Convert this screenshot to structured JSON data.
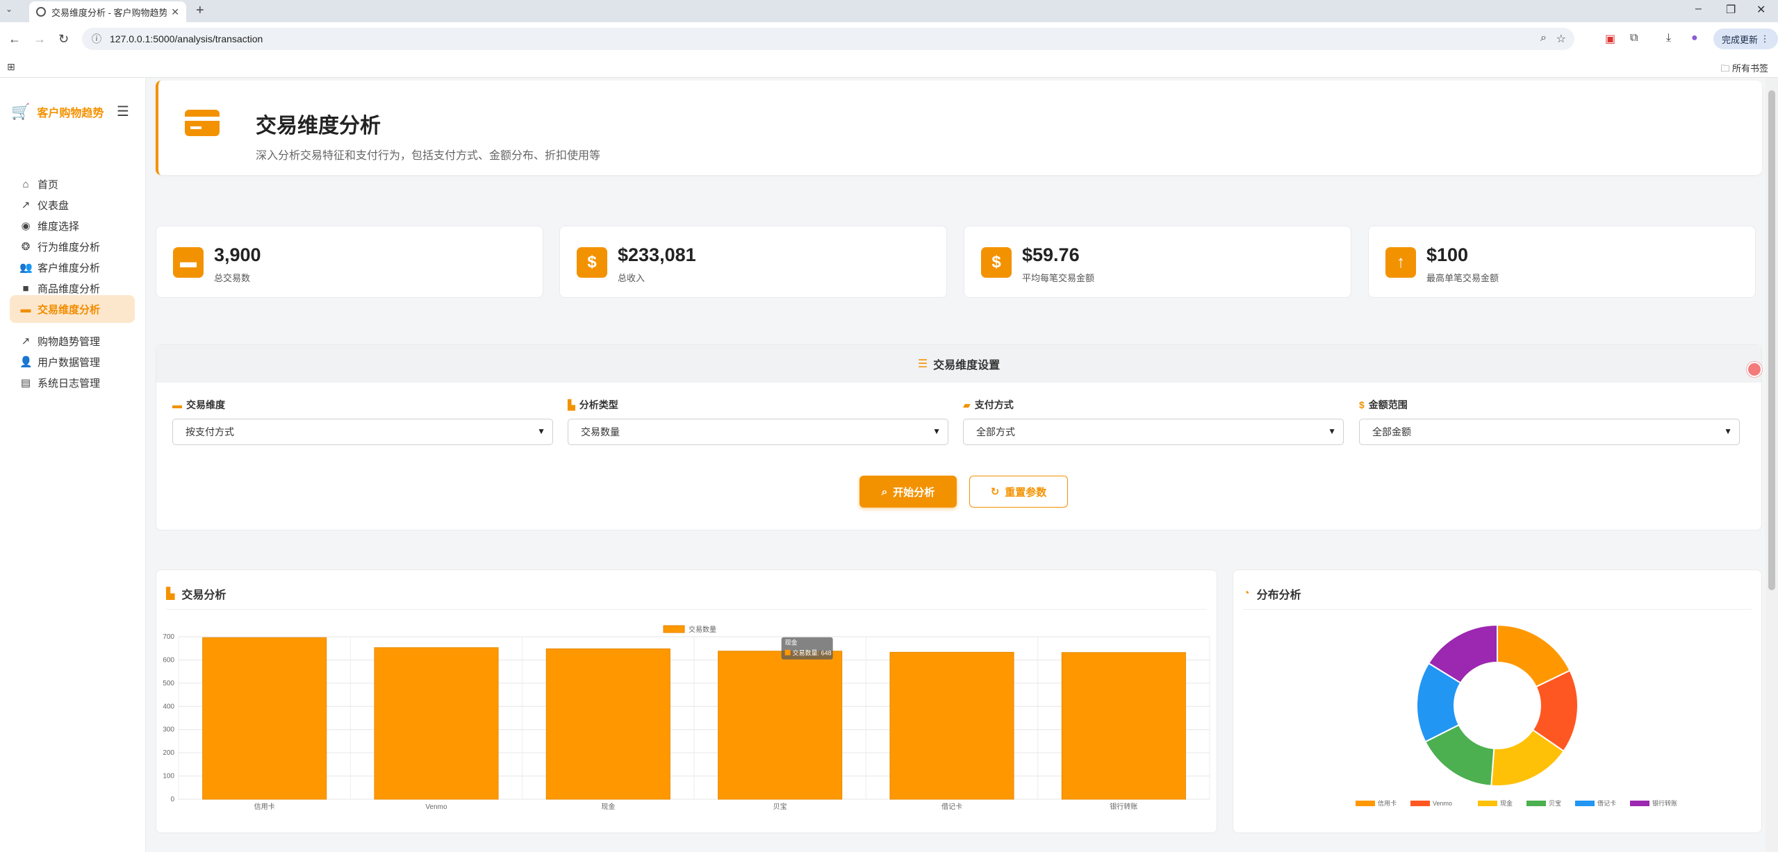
{
  "browser": {
    "tab_title": "交易维度分析 - 客户购物趋势",
    "url": "127.0.0.1:5000/analysis/transaction",
    "update_label": "完成更新",
    "bookmarks_label": "所有书签"
  },
  "sidebar": {
    "brand": "客户购物趋势",
    "items": [
      {
        "label": "首页",
        "icon": "home-icon"
      },
      {
        "label": "仪表盘",
        "icon": "chart-line-icon"
      },
      {
        "label": "维度选择",
        "icon": "compass-icon"
      },
      {
        "label": "行为维度分析",
        "icon": "brain-icon"
      },
      {
        "label": "客户维度分析",
        "icon": "users-icon"
      },
      {
        "label": "商品维度分析",
        "icon": "box-icon"
      },
      {
        "label": "交易维度分析",
        "icon": "credit-card-icon",
        "active": true
      },
      {
        "label": "购物趋势管理",
        "icon": "chart-line-icon"
      },
      {
        "label": "用户数据管理",
        "icon": "user-cog-icon"
      },
      {
        "label": "系统日志管理",
        "icon": "clipboard-icon"
      }
    ]
  },
  "header": {
    "title": "交易维度分析",
    "subtitle": "深入分析交易特征和支付行为，包括支付方式、金额分布、折扣使用等"
  },
  "stats": [
    {
      "value": "3,900",
      "label": "总交易数",
      "icon": "credit-card-icon"
    },
    {
      "value": "$233,081",
      "label": "总收入",
      "icon": "dollar-icon"
    },
    {
      "value": "$59.76",
      "label": "平均每笔交易金额",
      "icon": "dollar-icon"
    },
    {
      "value": "$100",
      "label": "最高单笔交易金额",
      "icon": "arrow-up-icon"
    }
  ],
  "settings": {
    "title": "交易维度设置",
    "fields": [
      {
        "label": "交易维度",
        "value": "按支付方式",
        "icon": "credit-card-icon"
      },
      {
        "label": "分析类型",
        "value": "交易数量",
        "icon": "chart-area-icon"
      },
      {
        "label": "支付方式",
        "value": "全部方式",
        "icon": "wallet-icon"
      },
      {
        "label": "金额范围",
        "value": "全部金额",
        "icon": "dollar-icon"
      }
    ],
    "start_button": "开始分析",
    "reset_button": "重置参数"
  },
  "charts": {
    "bar_title": "交易分析",
    "pie_title": "分布分析",
    "tooltip_title": "现金",
    "tooltip_text": "交易数量: 648"
  },
  "colors": {
    "accent": "#f39200",
    "bar": "#ff9800"
  },
  "chart_data": [
    {
      "type": "bar",
      "title": "交易分析",
      "categories": [
        "信用卡",
        "Venmo",
        "现金",
        "贝宝",
        "借记卡",
        "银行转账"
      ],
      "series": [
        {
          "name": "交易数量",
          "values": [
            696,
            653,
            648,
            638,
            633,
            632
          ]
        }
      ],
      "ylim": [
        0,
        700
      ],
      "yticks": [
        0,
        100,
        200,
        300,
        400,
        500,
        600,
        700
      ],
      "grid": true,
      "legend": "top"
    },
    {
      "type": "pie",
      "title": "分布分析",
      "donut": true,
      "labels": [
        "信用卡",
        "Venmo",
        "现金",
        "贝宝",
        "借记卡",
        "银行转账"
      ],
      "values": [
        696,
        653,
        648,
        638,
        633,
        632
      ],
      "colors": [
        "#ff9800",
        "#ff5722",
        "#ffc107",
        "#4caf50",
        "#2196f3",
        "#9c27b0"
      ],
      "legend": "bottom"
    }
  ]
}
